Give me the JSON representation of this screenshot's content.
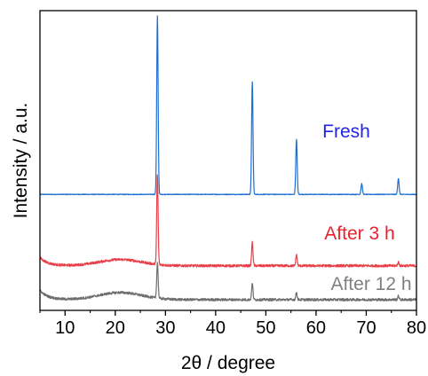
{
  "chart_data": {
    "type": "line",
    "xlabel": "2θ / degree",
    "ylabel": "Intensity / a.u.",
    "xlim": [
      5,
      80
    ],
    "x_ticks": [
      "10",
      "20",
      "30",
      "40",
      "50",
      "60",
      "70",
      "80"
    ],
    "y_ticks_labeled": false,
    "grid": false,
    "legend": "none",
    "series": [
      {
        "name": "Fresh",
        "color": "#1f6fd1",
        "label_color": "#2424e6",
        "baseline": 0.62,
        "background_hump": 0.0,
        "peaks": [
          {
            "x": 28.4,
            "height": 1.0
          },
          {
            "x": 47.3,
            "height": 0.63
          },
          {
            "x": 56.1,
            "height": 0.31
          },
          {
            "x": 69.1,
            "height": 0.06
          },
          {
            "x": 76.4,
            "height": 0.09
          }
        ]
      },
      {
        "name": "After 3 h",
        "color": "#e8404a",
        "label_color": "#e8232e",
        "baseline": 0.22,
        "background_hump": 0.035,
        "peaks": [
          {
            "x": 28.4,
            "height": 0.5
          },
          {
            "x": 47.3,
            "height": 0.13
          },
          {
            "x": 56.1,
            "height": 0.06
          },
          {
            "x": 76.4,
            "height": 0.02
          }
        ]
      },
      {
        "name": "After 12 h",
        "color": "#6e6e6e",
        "label_color": "#808080",
        "baseline": 0.03,
        "background_hump": 0.04,
        "peaks": [
          {
            "x": 28.4,
            "height": 0.2
          },
          {
            "x": 47.3,
            "height": 0.09
          },
          {
            "x": 56.1,
            "height": 0.04
          },
          {
            "x": 76.4,
            "height": 0.02
          }
        ]
      }
    ]
  }
}
